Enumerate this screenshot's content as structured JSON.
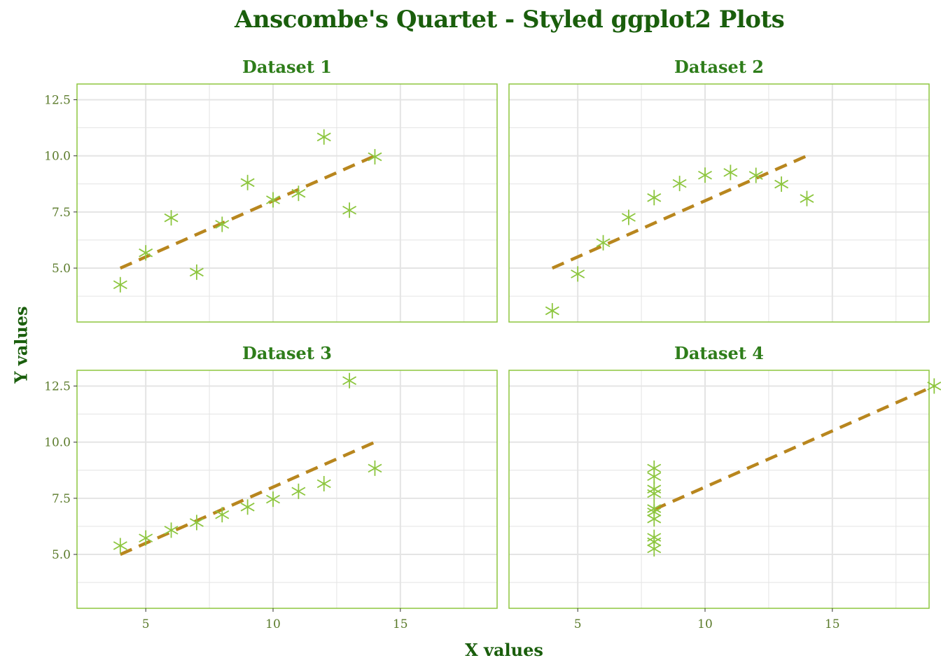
{
  "title": "Anscombe's Quartet - Styled ggplot2 Plots",
  "xlabel": "X values",
  "ylabel": "Y values",
  "colors": {
    "title": "#1a5e0c",
    "panel_title": "#2e7d1a",
    "tick_label": "#5a7a2a",
    "points": "#8dc63f",
    "panel_border": "#8dc63f",
    "fit_line": "#b8861e",
    "grid": "#e4e4e4"
  },
  "chart_data": [
    {
      "type": "scatter",
      "title": "Dataset 1",
      "marker": "asterisk",
      "x": [
        10,
        8,
        13,
        9,
        11,
        14,
        6,
        4,
        12,
        7,
        5
      ],
      "y": [
        8.04,
        6.95,
        7.58,
        8.81,
        8.33,
        9.96,
        7.24,
        4.26,
        10.84,
        4.82,
        5.68
      ],
      "fit_line": {
        "style": "dashed",
        "x": [
          4,
          14
        ],
        "y": [
          5.0,
          10.0
        ]
      },
      "xlim": [
        2.3,
        18.8
      ],
      "ylim": [
        2.6,
        13.2
      ],
      "xticks": [
        "5",
        "10",
        "15"
      ],
      "yticks": [
        "5.0",
        "7.5",
        "10.0",
        "12.5"
      ]
    },
    {
      "type": "scatter",
      "title": "Dataset 2",
      "marker": "asterisk",
      "x": [
        10,
        8,
        13,
        9,
        11,
        14,
        6,
        4,
        12,
        7,
        5
      ],
      "y": [
        9.14,
        8.14,
        8.74,
        8.77,
        9.26,
        8.1,
        6.13,
        3.1,
        9.13,
        7.26,
        4.74
      ],
      "fit_line": {
        "style": "dashed",
        "x": [
          4,
          14
        ],
        "y": [
          5.0,
          10.0
        ]
      },
      "xlim": [
        2.3,
        18.8
      ],
      "ylim": [
        2.6,
        13.2
      ],
      "xticks": [
        "5",
        "10",
        "15"
      ],
      "yticks": [
        "5.0",
        "7.5",
        "10.0",
        "12.5"
      ]
    },
    {
      "type": "scatter",
      "title": "Dataset 3",
      "marker": "asterisk",
      "x": [
        10,
        8,
        13,
        9,
        11,
        14,
        6,
        4,
        12,
        7,
        5
      ],
      "y": [
        7.46,
        6.77,
        12.74,
        7.11,
        7.81,
        8.84,
        6.08,
        5.39,
        8.15,
        6.42,
        5.73
      ],
      "fit_line": {
        "style": "dashed",
        "x": [
          4,
          14
        ],
        "y": [
          5.0,
          10.0
        ]
      },
      "xlim": [
        2.3,
        18.8
      ],
      "ylim": [
        2.6,
        13.2
      ],
      "xticks": [
        "5",
        "10",
        "15"
      ],
      "yticks": [
        "5.0",
        "7.5",
        "10.0",
        "12.5"
      ]
    },
    {
      "type": "scatter",
      "title": "Dataset 4",
      "marker": "asterisk",
      "x": [
        8,
        8,
        8,
        8,
        8,
        8,
        8,
        19,
        8,
        8,
        8
      ],
      "y": [
        6.58,
        5.76,
        7.71,
        8.84,
        8.47,
        7.04,
        5.25,
        12.5,
        5.56,
        7.91,
        6.89
      ],
      "fit_line": {
        "style": "dashed",
        "x": [
          8,
          19
        ],
        "y": [
          7.0,
          12.5
        ]
      },
      "xlim": [
        2.3,
        18.8
      ],
      "ylim": [
        2.6,
        13.2
      ],
      "xticks": [
        "5",
        "10",
        "15"
      ],
      "yticks": [
        "5.0",
        "7.5",
        "10.0",
        "12.5"
      ]
    }
  ]
}
